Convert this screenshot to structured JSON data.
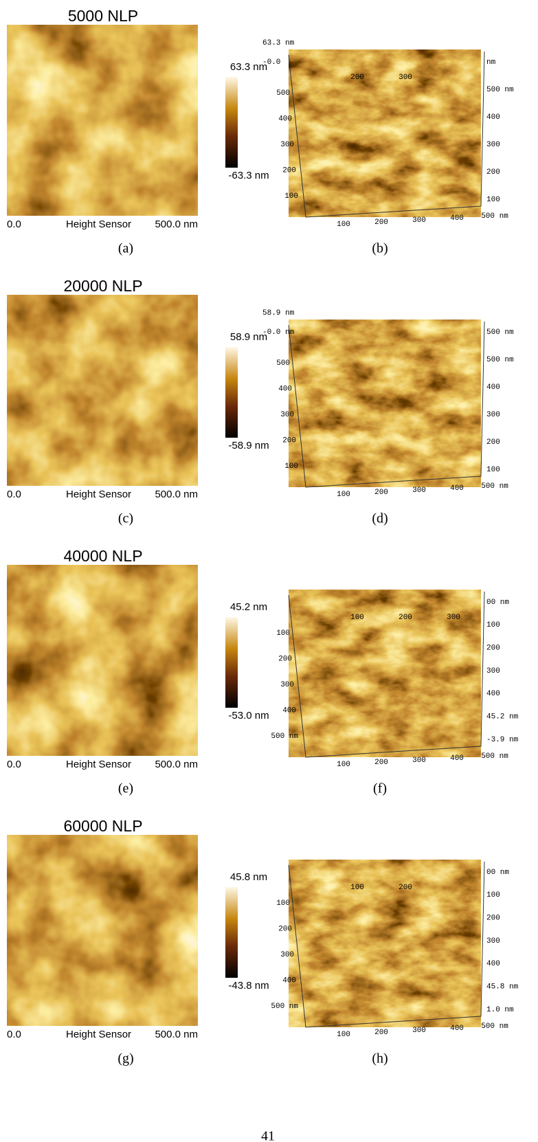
{
  "panels": [
    {
      "title": "5000 NLP",
      "scale_max": "63.3 nm",
      "scale_min": "-63.3 nm",
      "axis_start": "0.0",
      "axis_name": "Height Sensor",
      "axis_end": "500.0 nm",
      "caption_left": "(a)",
      "caption_right": "(b)",
      "surface": {
        "z_max": "63.3 nm",
        "z_min": "-0.0",
        "top_ticks": [
          "200",
          "300"
        ],
        "left_ticks": [
          "500",
          "400",
          "300",
          "200",
          "100"
        ],
        "right_ticks": [
          "nm",
          "500 nm",
          "400",
          "300",
          "200",
          "100"
        ],
        "bottom_ticks": [
          "100",
          "200",
          "300",
          "400",
          "500 nm"
        ]
      }
    },
    {
      "title": "20000 NLP",
      "scale_max": "58.9 nm",
      "scale_min": "-58.9 nm",
      "axis_start": "0.0",
      "axis_name": "Height Sensor",
      "axis_end": "500.0 nm",
      "caption_left": "(c)",
      "caption_right": "(d)",
      "surface": {
        "z_max": "58.9 nm",
        "z_min": "-0.0 nm",
        "top_ticks": [],
        "left_ticks": [
          "500",
          "400",
          "300",
          "200",
          "100"
        ],
        "right_ticks": [
          "500 nm",
          "500 nm",
          "400",
          "300",
          "200",
          "100"
        ],
        "bottom_ticks": [
          "100",
          "200",
          "300",
          "400",
          "500 nm"
        ]
      }
    },
    {
      "title": "40000 NLP",
      "scale_max": "45.2 nm",
      "scale_min": "-53.0 nm",
      "axis_start": "0.0",
      "axis_name": "Height Sensor",
      "axis_end": "500.0 nm",
      "caption_left": "(e)",
      "caption_right": "(f)",
      "surface": {
        "z_max": "",
        "z_min": "",
        "top_ticks": [
          "100",
          "200",
          "300"
        ],
        "left_ticks": [
          "100",
          "200",
          "300",
          "400",
          "500 nm"
        ],
        "right_ticks": [
          "00 nm",
          "100",
          "200",
          "300",
          "400",
          "45.2 nm",
          "-3.9 nm"
        ],
        "bottom_ticks": [
          "100",
          "200",
          "300",
          "400",
          "500 nm"
        ]
      }
    },
    {
      "title": "60000 NLP",
      "scale_max": "45.8 nm",
      "scale_min": "-43.8 nm",
      "axis_start": "0.0",
      "axis_name": "Height Sensor",
      "axis_end": "500.0 nm",
      "caption_left": "(g)",
      "caption_right": "(h)",
      "surface": {
        "z_max": "",
        "z_min": "",
        "top_ticks": [
          "100",
          "200"
        ],
        "left_ticks": [
          "100",
          "200",
          "300",
          "400",
          "500 nm"
        ],
        "right_ticks": [
          "00 nm",
          "100",
          "200",
          "300",
          "400",
          "45.8 nm",
          "1.0 nm"
        ],
        "bottom_ticks": [
          "100",
          "200",
          "300",
          "400",
          "500 nm"
        ]
      }
    }
  ],
  "page_number": "41"
}
